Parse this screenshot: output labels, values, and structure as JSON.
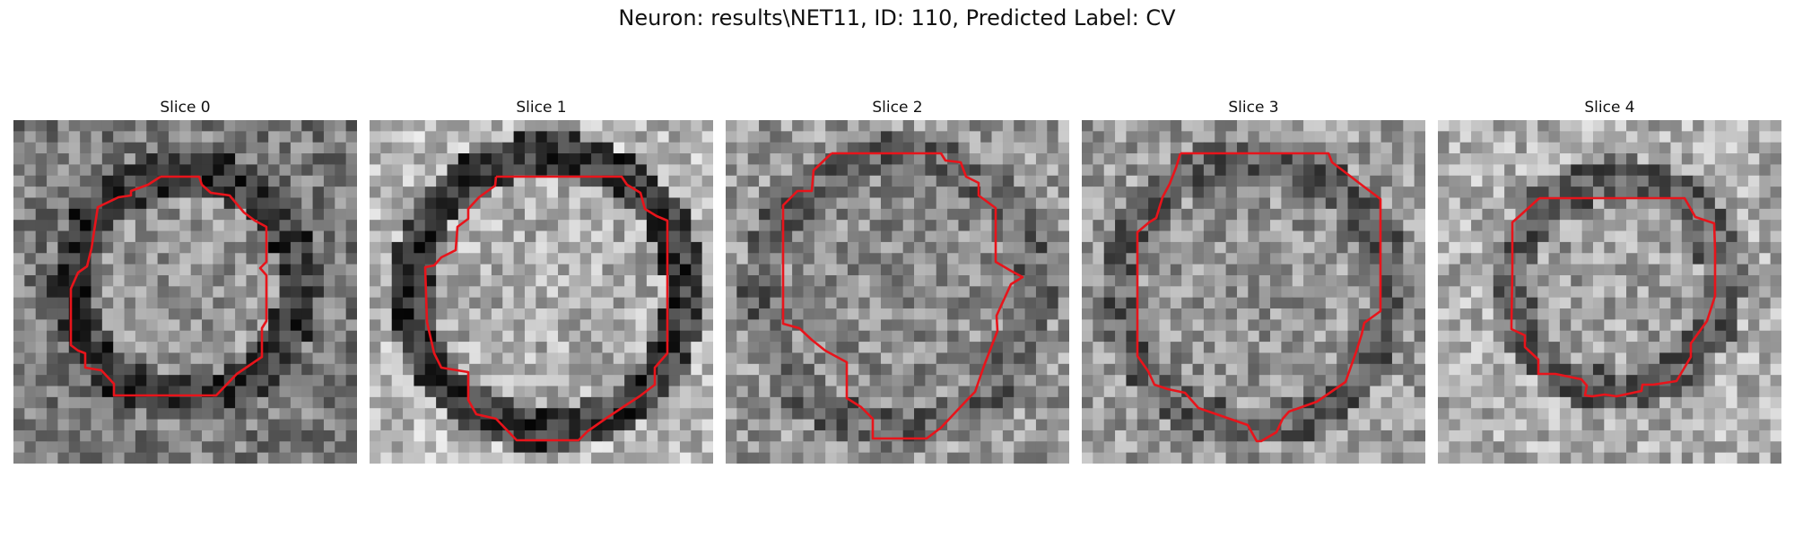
{
  "figure": {
    "title": "Neuron: results\\NET11, ID: 110, Predicted Label: CV"
  },
  "panels": [
    {
      "title": "Slice 0"
    },
    {
      "title": "Slice 1"
    },
    {
      "title": "Slice 2"
    },
    {
      "title": "Slice 3"
    },
    {
      "title": "Slice 4"
    }
  ],
  "contour_color": "#e8141b"
}
